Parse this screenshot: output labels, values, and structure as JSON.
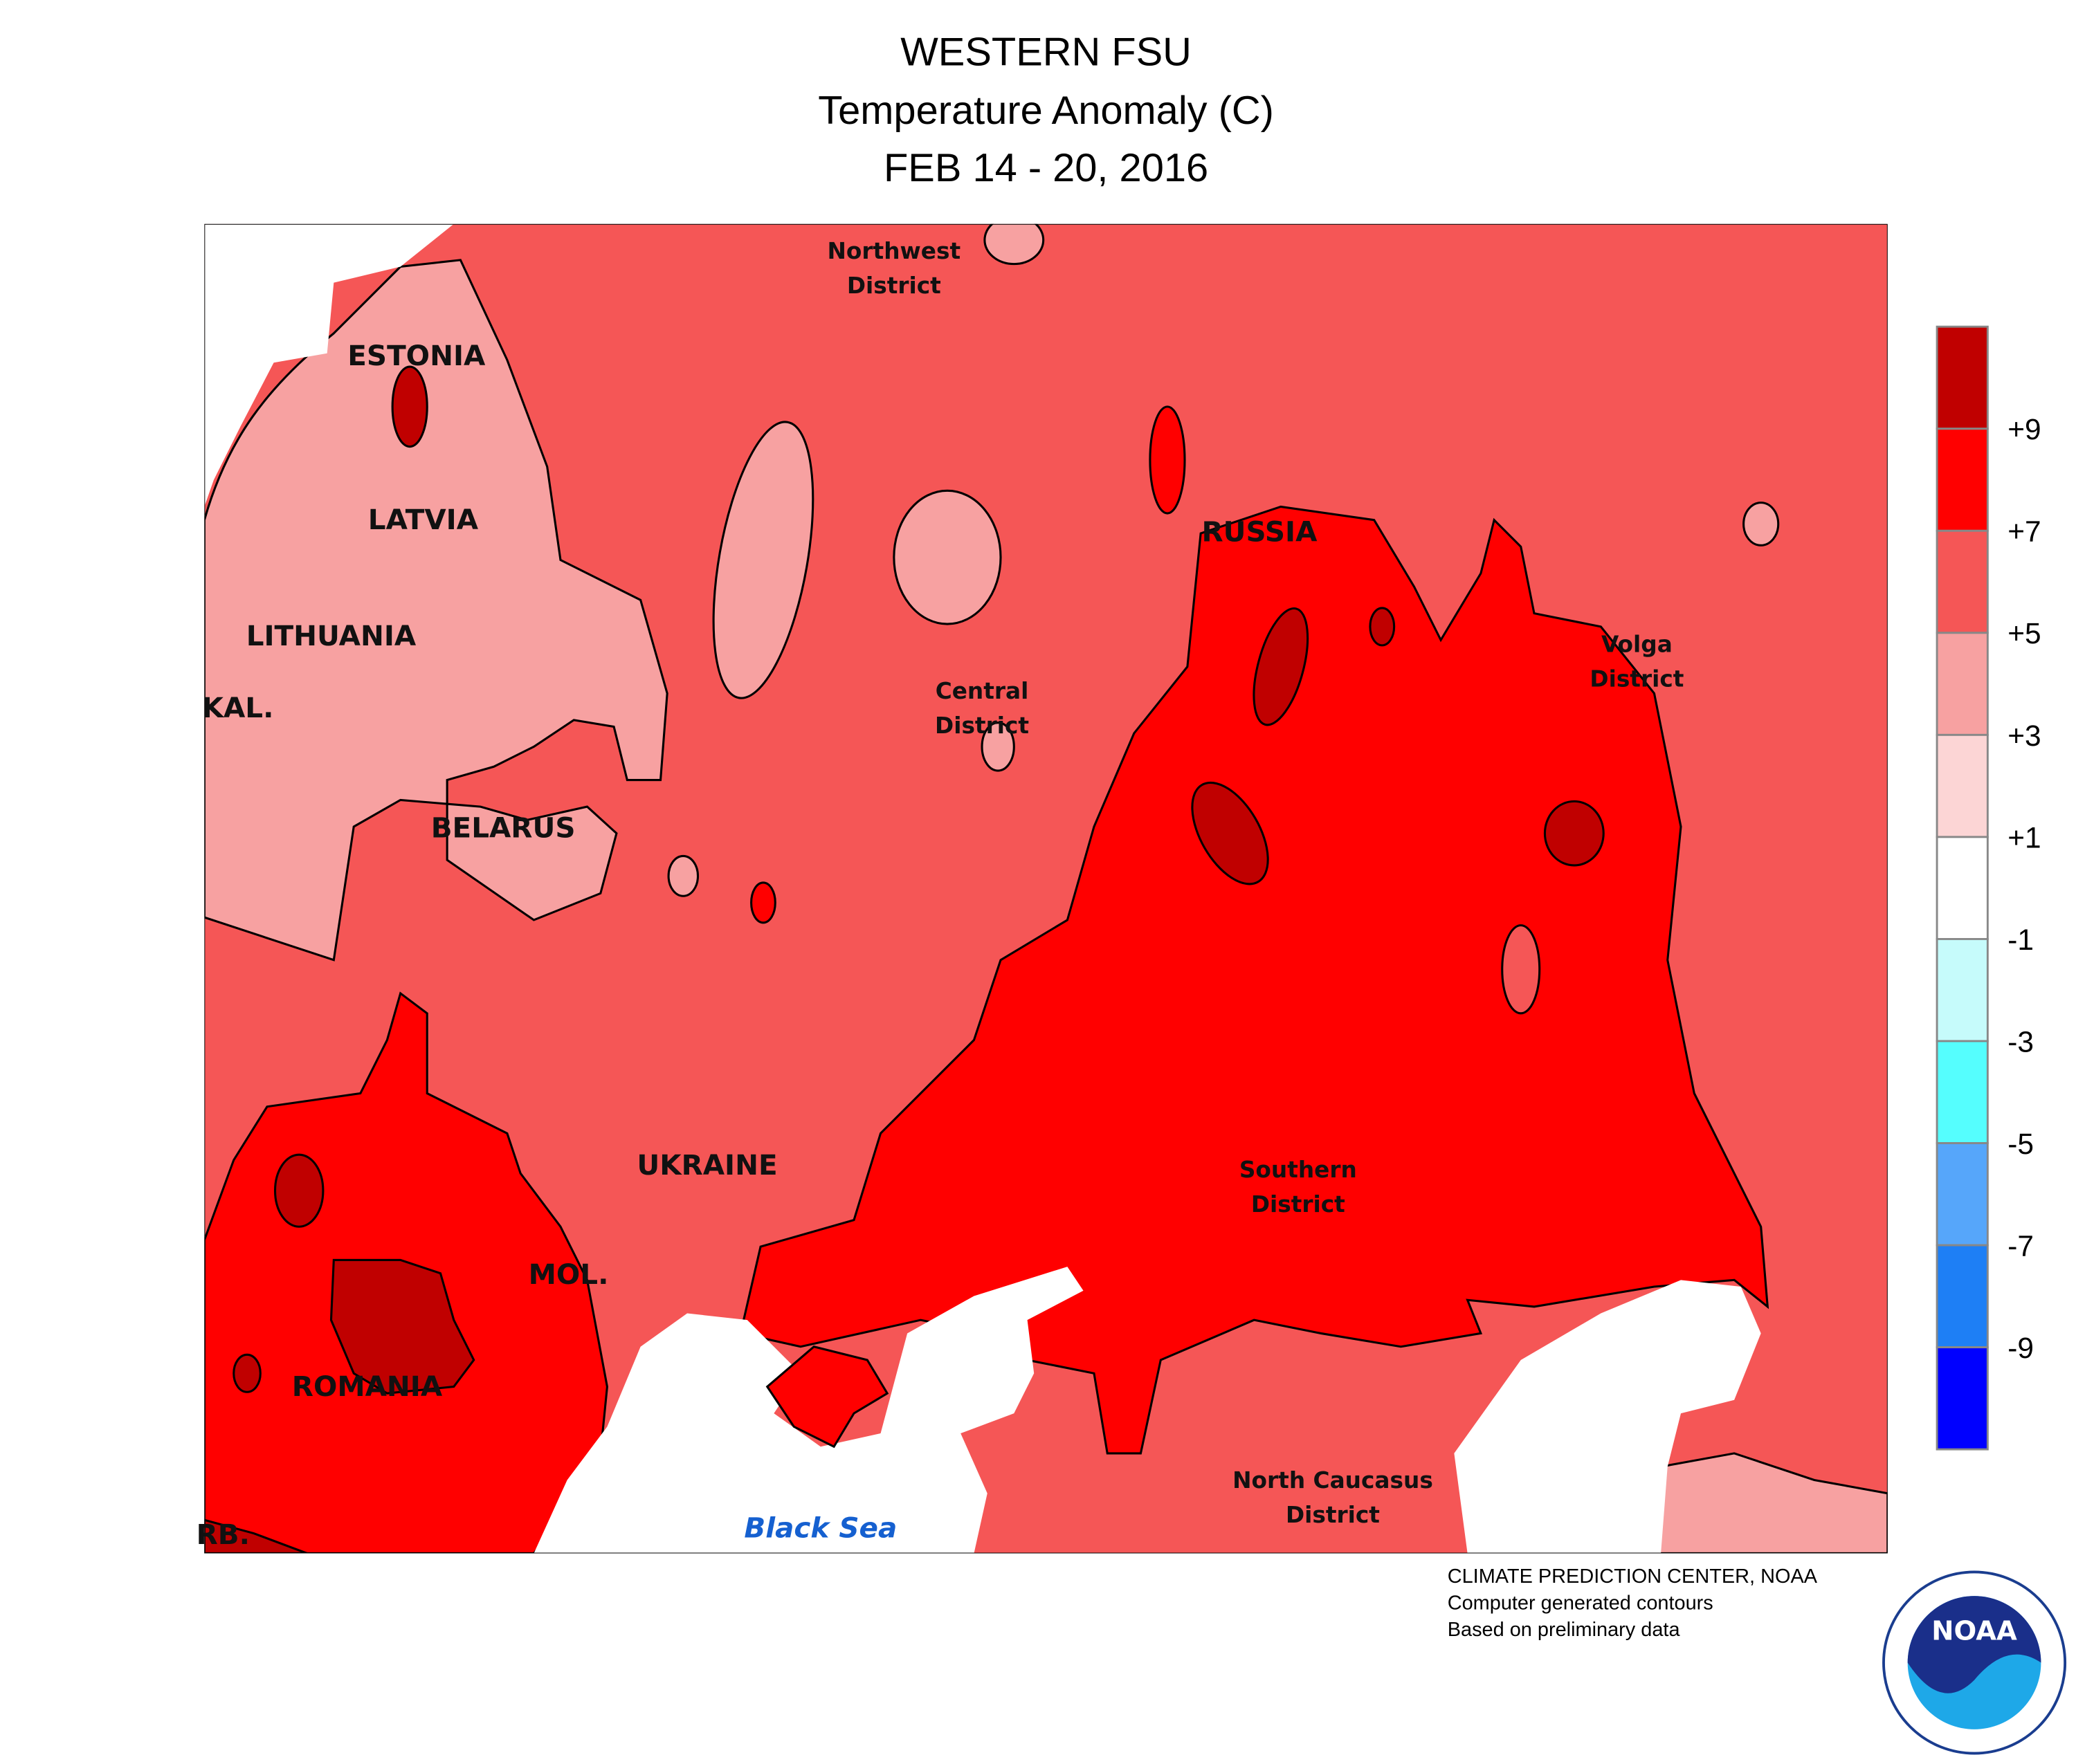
{
  "header": {
    "title": "WESTERN FSU",
    "subtitle": "Temperature Anomaly (C)",
    "dates": "FEB 14 - 20, 2016"
  },
  "map": {
    "labels": [
      [
        "ESTONIA"
      ],
      [
        "LATVIA"
      ],
      [
        "LITHUANIA"
      ],
      [
        "KAL."
      ],
      [
        "BELARUS"
      ],
      [
        "UKRAINE"
      ],
      [
        "MOL."
      ],
      [
        "ROMANIA"
      ],
      [
        "RB."
      ],
      [
        "RUSSIA"
      ],
      [
        "Northwest",
        "District"
      ],
      [
        "Central",
        "District"
      ],
      [
        "Volga",
        "District"
      ],
      [
        "Southern",
        "District"
      ],
      [
        "North Caucasus",
        "District"
      ],
      [
        "Black Sea"
      ]
    ]
  },
  "legend": {
    "colors": [
      "#c00000",
      "#ff0000",
      "#f55656",
      "#f7a1a1",
      "#fcd5d5",
      "#ffffff",
      "#c6fbfb",
      "#55fefe",
      "#56a6fa",
      "#1e7ff5",
      "#0000ff"
    ],
    "labels": [
      "+9",
      "+7",
      "+5",
      "+3",
      "+1",
      "-1",
      "-3",
      "-5",
      "-7",
      "-9"
    ]
  },
  "credits": [
    "CLIMATE PREDICTION CENTER, NOAA",
    "Computer generated contours",
    "Based on preliminary data"
  ],
  "logo": "NOAA"
}
